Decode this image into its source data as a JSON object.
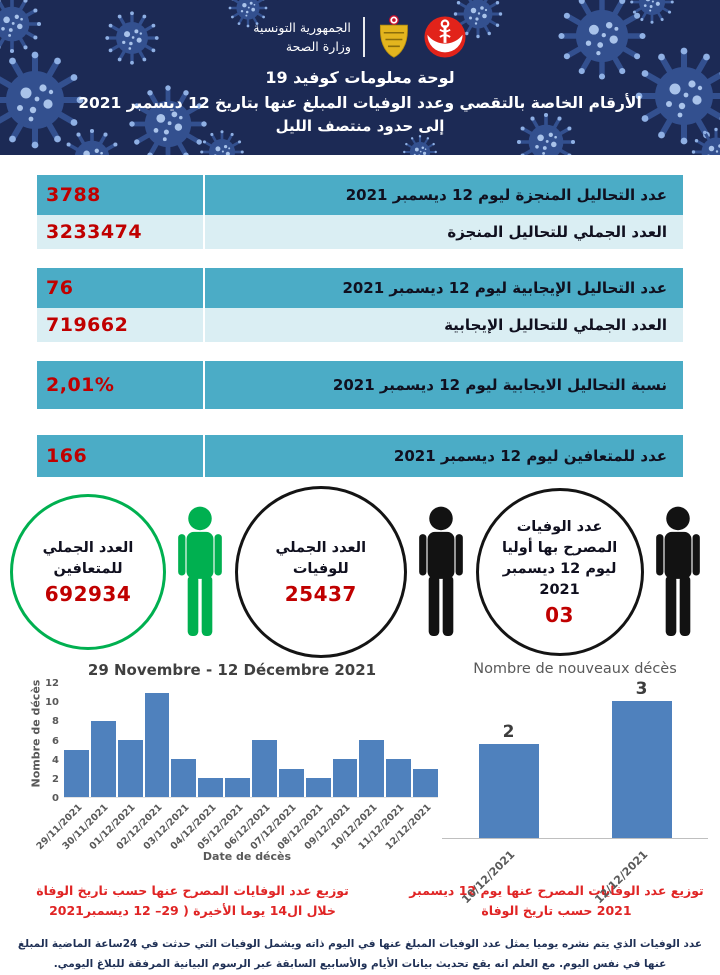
{
  "header": {
    "gov_line1": "الجمهورية التونسية",
    "gov_line2": "وزارة الصحة",
    "title_line1": "لوحة معلومات كوفيد  19",
    "title_line2": "الأرقام الخاصة بالتقصي وعدد الوفيات المبلغ عنها بتاريخ 12 ديسمبر 2021",
    "title_line3": "إلى حدود منتصف الليل"
  },
  "stats": [
    {
      "label": "عدد التحاليل المنجزة ليوم  12 ديسمبر  2021",
      "value": "3788"
    },
    {
      "label": "العدد الجملي للتحاليل المنجزة",
      "value": "3233474"
    },
    {
      "label": "عدد التحاليل الإيجابية ليوم  12 ديسمبر  2021",
      "value": "76"
    },
    {
      "label": "العدد الجملي للتحاليل الإيجابية",
      "value": "719662"
    },
    {
      "label": "نسبة التحاليل الايجابية ليوم 12 ديسمبر  2021",
      "value": "2,01%"
    },
    {
      "label": "عدد للمتعافين ليوم 12 ديسمبر  2021",
      "value": "166"
    }
  ],
  "circles": [
    {
      "label": "العدد الجملي للمتعافين",
      "value": "692934"
    },
    {
      "label": "العدد الجملي للوفيات",
      "value": "25437"
    },
    {
      "label": "عدد الوفيات المصرح بها أوليا ليوم 12 ديسمبر  2021",
      "value": "03"
    }
  ],
  "chart_data": [
    {
      "type": "bar",
      "title": "29 Novembre - 12 Décembre 2021",
      "xlabel": "Date de décès",
      "ylabel": "Nombre de décès",
      "categories": [
        "29/11/2021",
        "30/11/2021",
        "01/12/2021",
        "02/12/2021",
        "03/12/2021",
        "04/12/2021",
        "05/12/2021",
        "06/12/2021",
        "07/12/2021",
        "08/12/2021",
        "09/12/2021",
        "10/12/2021",
        "11/12/2021",
        "12/12/2021"
      ],
      "values": [
        5,
        8,
        6,
        11,
        4,
        2,
        2,
        6,
        3,
        2,
        4,
        6,
        4,
        3
      ],
      "ylim": [
        0,
        12
      ],
      "yticks": [
        0,
        2,
        4,
        6,
        8,
        10,
        12
      ],
      "bar_color": "#4f81bd",
      "grid": false,
      "legend": false
    },
    {
      "type": "bar",
      "title": "Nombre de nouveaux décès",
      "categories": [
        "10/12/2021",
        "12/12/2021"
      ],
      "values": [
        2,
        3
      ],
      "data_labels": true,
      "ylim": [
        0,
        3.4
      ],
      "bar_color": "#4f81bd",
      "grid": false,
      "legend": false
    }
  ],
  "captions": {
    "left": "توزيع عدد الوفايات المصرح عنها حسب تاريخ الوفاة خلال ال14 يوما الأخيرة ( 29– 12 ديسمبر2021",
    "right": "توزيع عدد الوفايات المصرح عنها يوم  12 ديسمبر 2021 حسب تاريخ الوفاة"
  },
  "footer": "عدد الوفيات الذي يتم نشره يوميا يمثل عدد الوفيات المبلغ عنها في اليوم ذاته ويشمل الوفيات التي حدثت في 24ساعة الماضية المبلغ عنها في نفس  اليوم. مع العلم انه يقع تحديث بيانات الأيام والأسابيع السابقة عبر الرسوم البيانية المرفقة للبلاغ اليومي.",
  "colors": {
    "header_navy": "#1c2a55",
    "row_teal": "#4bacc6",
    "row_light_blue": "#daeef3",
    "value_red": "#c00000",
    "caption_red": "#e02424",
    "bar_blue": "#4f81bd",
    "recovered_green": "#00b050",
    "deaths_black": "#141414"
  }
}
